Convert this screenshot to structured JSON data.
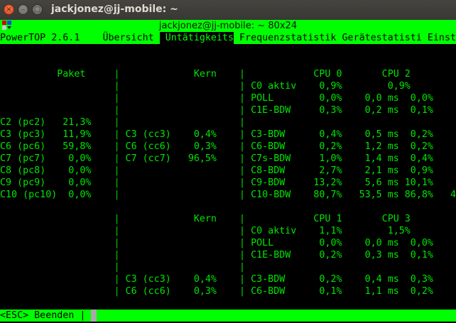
{
  "window": {
    "title": "jackjonez@jj-mobile: ~",
    "terminal_title": "jackjonez@jj-mobile: ~ 80x24",
    "icons": [
      "close-icon",
      "minimize-icon",
      "maximize-icon",
      "terminal-menu-icon"
    ]
  },
  "colors": {
    "text": "#00e400",
    "separator": "#00a800",
    "bar": "#00ff00",
    "background": "#000000"
  },
  "header": {
    "app": "PowerTOP 2.6.1",
    "tabs": [
      {
        "label": "Übersicht",
        "active": false
      },
      {
        "label": "Untätigkeits",
        "active": true
      },
      {
        "label": "Frequenzstatistik",
        "active": false
      },
      {
        "label": "Gerätestatisti",
        "active": false
      },
      {
        "label": "Einst",
        "active": false
      }
    ]
  },
  "section1": {
    "package_title": "Paket",
    "core_title": "Kern",
    "cpu_a": "CPU 0",
    "cpu_b": "CPU 2",
    "package": [
      {
        "label": "C2 (pc2)",
        "value": "21,3%"
      },
      {
        "label": "C3 (pc3)",
        "value": "11,9%"
      },
      {
        "label": "C6 (pc6)",
        "value": "59,8%"
      },
      {
        "label": "C7 (pc7)",
        "value": "0,0%"
      },
      {
        "label": "C8 (pc8)",
        "value": "0,0%"
      },
      {
        "label": "C9 (pc9)",
        "value": "0,0%"
      },
      {
        "label": "C10 (pc10)",
        "value": "0,0%"
      }
    ],
    "core": [
      {
        "label": "C3 (cc3)",
        "value": "0,4%"
      },
      {
        "label": "C6 (cc6)",
        "value": "0,3%"
      },
      {
        "label": "C7 (cc7)",
        "value": "96,5%"
      }
    ],
    "cpu_top": [
      {
        "label": "C0 aktiv",
        "a": "0,9%",
        "time": "",
        "b": "0,9%"
      },
      {
        "label": "POLL",
        "a": "0,0%",
        "time": "0,0 ms",
        "b": "0,0%"
      },
      {
        "label": "C1E-BDW",
        "a": "0,3%",
        "time": "0,2 ms",
        "b": "0,1%"
      }
    ],
    "cpu_bottom": [
      {
        "label": "C3-BDW",
        "a": "0,4%",
        "time": "0,5 ms",
        "b": "0,2%"
      },
      {
        "label": "C6-BDW",
        "a": "0,2%",
        "time": "1,2 ms",
        "b": "0,2%"
      },
      {
        "label": "C7s-BDW",
        "a": "1,0%",
        "time": "1,4 ms",
        "b": "0,4%"
      },
      {
        "label": "C8-BDW",
        "a": "2,7%",
        "time": "2,1 ms",
        "b": "0,9%"
      },
      {
        "label": "C9-BDW",
        "a": "13,2%",
        "time": "5,6 ms",
        "b": "10,1%"
      },
      {
        "label": "C10-BDW",
        "a": "80,7%",
        "time": "53,5 ms",
        "b": "86,8%",
        "overflow": "4"
      }
    ]
  },
  "section2": {
    "core_title": "Kern",
    "cpu_a": "CPU 1",
    "cpu_b": "CPU 3",
    "core": [
      {
        "label": "C3 (cc3)",
        "value": "0,4%"
      },
      {
        "label": "C6 (cc6)",
        "value": "0,3%"
      }
    ],
    "cpu_top": [
      {
        "label": "C0 aktiv",
        "a": "1,1%",
        "time": "",
        "b": "1,5%"
      },
      {
        "label": "POLL",
        "a": "0,0%",
        "time": "0,0 ms",
        "b": "0,0%"
      },
      {
        "label": "C1E-BDW",
        "a": "0,2%",
        "time": "0,3 ms",
        "b": "0,1%"
      }
    ],
    "cpu_bottom": [
      {
        "label": "C3-BDW",
        "a": "0,2%",
        "time": "0,4 ms",
        "b": "0,3%"
      },
      {
        "label": "C6-BDW",
        "a": "0,1%",
        "time": "1,1 ms",
        "b": "0,2%"
      }
    ]
  },
  "footer": {
    "hint": "<ESC> Beenden |"
  }
}
